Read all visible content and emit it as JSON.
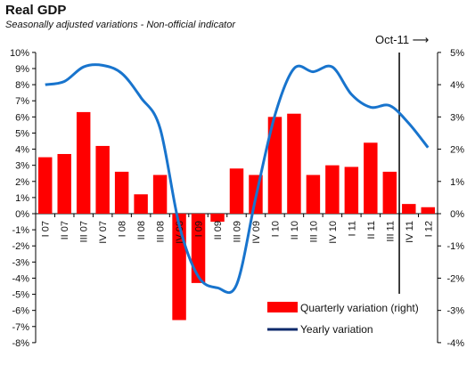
{
  "title": "Real GDP",
  "subtitle": "Seasonally adjusted variations - Non-official indicator",
  "marker_label": "Oct-11 ⟶",
  "colors": {
    "bars": "#ff0000",
    "line": "#1874cd",
    "legend_line": "#0d2a6b",
    "marker": "#000000"
  },
  "chart_data": {
    "type": "bar",
    "categories": [
      "I 07",
      "II 07",
      "III 07",
      "IV 07",
      "I 08",
      "II 08",
      "III 08",
      "IV 08",
      "I 09",
      "II 09",
      "III 09",
      "IV 09",
      "I 10",
      "II 10",
      "III 10",
      "IV 10",
      "I 11",
      "II 11",
      "III 11",
      "IV 11",
      "I 12"
    ],
    "series": [
      {
        "name": "Quarterly variation (right)",
        "type": "bar",
        "axis": "right",
        "values": [
          1.75,
          1.85,
          3.15,
          2.1,
          1.3,
          0.6,
          1.2,
          -3.3,
          -2.15,
          -0.25,
          1.4,
          1.2,
          3.0,
          3.1,
          1.2,
          1.5,
          1.45,
          2.2,
          1.3,
          0.3,
          0.2
        ]
      },
      {
        "name": "Yearly variation",
        "type": "line",
        "axis": "left",
        "values": [
          8.0,
          8.2,
          9.1,
          9.2,
          8.7,
          7.2,
          5.3,
          -0.7,
          -3.9,
          -4.6,
          -4.4,
          1.0,
          6.1,
          9.0,
          8.8,
          9.1,
          7.4,
          6.6,
          6.7,
          5.6,
          4.1
        ]
      }
    ],
    "marker_after": "III 11",
    "y_left": {
      "min": -8,
      "max": 10,
      "step": 1,
      "ticks": [
        "10%",
        "9%",
        "8%",
        "7%",
        "6%",
        "5%",
        "4%",
        "3%",
        "2%",
        "1%",
        "0%",
        "-1%",
        "-2%",
        "-3%",
        "-4%",
        "-5%",
        "-6%",
        "-7%",
        "-8%"
      ]
    },
    "y_right": {
      "min": -4,
      "max": 5,
      "step": 1,
      "ticks": [
        "5%",
        "4%",
        "3%",
        "2%",
        "1%",
        "0%",
        "-1%",
        "-2%",
        "-3%",
        "-4%"
      ]
    },
    "grid": false,
    "legend_position": "bottom-right"
  }
}
